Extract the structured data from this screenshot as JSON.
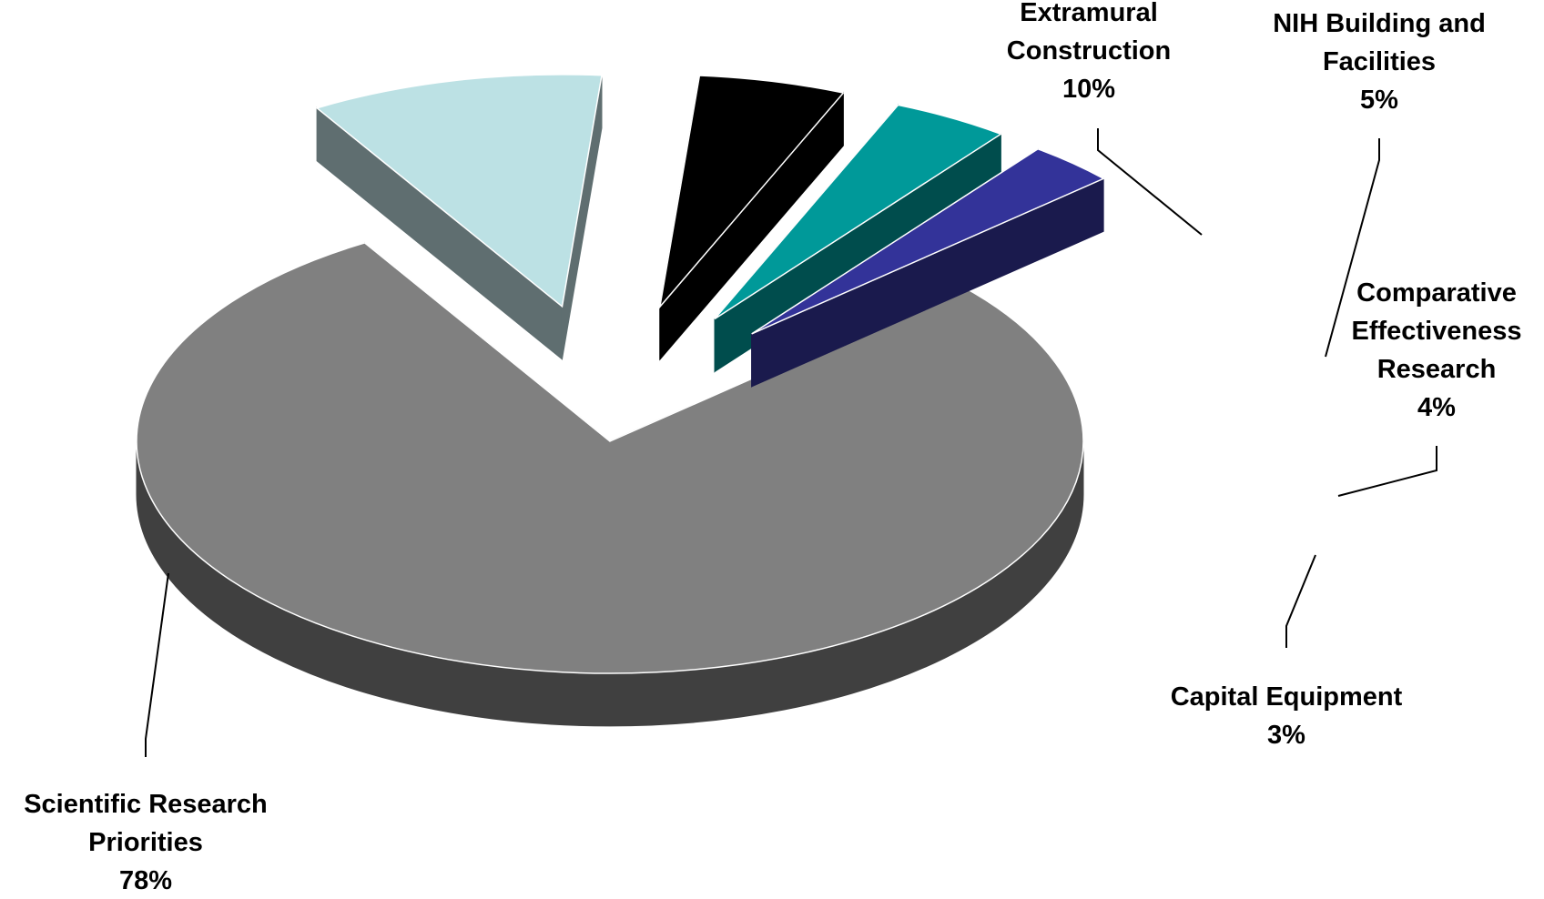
{
  "chart_data": {
    "type": "pie",
    "title": "",
    "style": "3d-exploded",
    "slices": [
      {
        "name_lines": [
          "Scientific Research",
          "Priorities"
        ],
        "label": "Scientific Research Priorities",
        "value": 78,
        "value_label": "78%",
        "color": "#808080",
        "side_color": "#404040"
      },
      {
        "name_lines": [
          "Extramural",
          "Construction"
        ],
        "label": "Extramural Construction",
        "value": 10,
        "value_label": "10%",
        "color": "#bce1e4",
        "side_color": "#5f6e70"
      },
      {
        "name_lines": [
          "NIH Building and",
          "Facilities"
        ],
        "label": "NIH Building and Facilities",
        "value": 5,
        "value_label": "5%",
        "color": "#000000",
        "side_color": "#000000"
      },
      {
        "name_lines": [
          "Comparative",
          "Effectiveness",
          "Research"
        ],
        "label": "Comparative Effectiveness Research",
        "value": 4,
        "value_label": "4%",
        "color": "#009999",
        "side_color": "#004d4d"
      },
      {
        "name_lines": [
          "Capital Equipment"
        ],
        "label": "Capital Equipment",
        "value": 3,
        "value_label": "3%",
        "color": "#333399",
        "side_color": "#1a1a4d"
      }
    ]
  }
}
